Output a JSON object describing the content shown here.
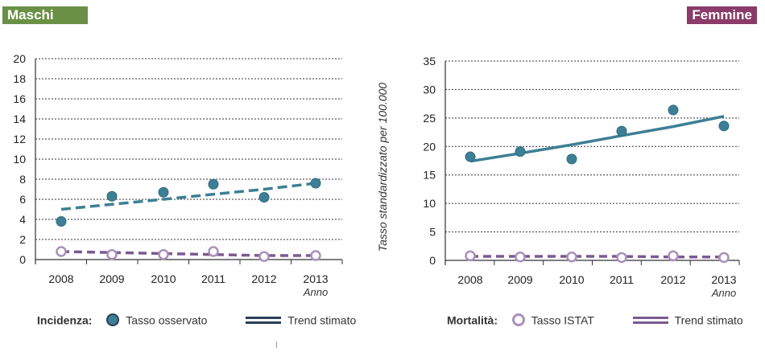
{
  "badges": {
    "left": "Maschi",
    "right": "Femmine"
  },
  "legend_left": {
    "title": "Incidenza:",
    "marker_label": "Tasso osservato",
    "line_label": "Trend stimato"
  },
  "legend_right": {
    "title": "Mortalità:",
    "marker_label": "Tasso ISTAT",
    "line_label": "Trend stimato"
  },
  "colors": {
    "teal": "#3d7f95",
    "purple": "#7b5a91",
    "purple_light": "#a991b9",
    "green": "#6a9046",
    "magenta": "#8a3b69"
  },
  "chart_data": [
    {
      "type": "scatter",
      "panel": "Maschi",
      "x": [
        "2008",
        "2009",
        "2010",
        "2011",
        "2012",
        "2013"
      ],
      "xlabel": "Anno",
      "ylabel": "",
      "ylim": [
        0,
        20
      ],
      "yticks": [
        0,
        2,
        4,
        6,
        8,
        10,
        12,
        14,
        16,
        18,
        20
      ],
      "grid": true,
      "series": [
        {
          "name": "Tasso osservato",
          "values": [
            3.8,
            6.3,
            6.7,
            7.5,
            6.2,
            7.6
          ]
        },
        {
          "name": "Trend stimato",
          "values": [
            5.0,
            5.5,
            6.0,
            6.5,
            7.0,
            7.6
          ]
        },
        {
          "name": "Tasso ISTAT",
          "values": [
            0.8,
            0.5,
            0.5,
            0.8,
            0.3,
            0.4
          ]
        },
        {
          "name": "Trend stimato",
          "values": [
            0.8,
            0.7,
            0.6,
            0.5,
            0.4,
            0.4
          ]
        }
      ]
    },
    {
      "type": "scatter",
      "panel": "Femmine",
      "x": [
        "2008",
        "2009",
        "2010",
        "2011",
        "2012",
        "2013"
      ],
      "xlabel": "Anno",
      "ylabel": "Tasso standardizzato per 100.000",
      "ylim": [
        0,
        35
      ],
      "yticks": [
        0,
        5,
        10,
        15,
        20,
        25,
        30,
        35
      ],
      "grid": true,
      "series": [
        {
          "name": "Tasso osservato",
          "values": [
            18.2,
            19.1,
            17.8,
            22.7,
            26.4,
            23.6
          ]
        },
        {
          "name": "Trend stimato",
          "values": [
            17.4,
            18.8,
            20.3,
            21.9,
            23.5,
            25.3
          ]
        },
        {
          "name": "Tasso ISTAT",
          "values": [
            0.8,
            0.6,
            0.6,
            0.5,
            0.8,
            0.5
          ]
        },
        {
          "name": "Trend stimato",
          "values": [
            0.7,
            0.7,
            0.7,
            0.7,
            0.6,
            0.6
          ]
        }
      ]
    }
  ]
}
